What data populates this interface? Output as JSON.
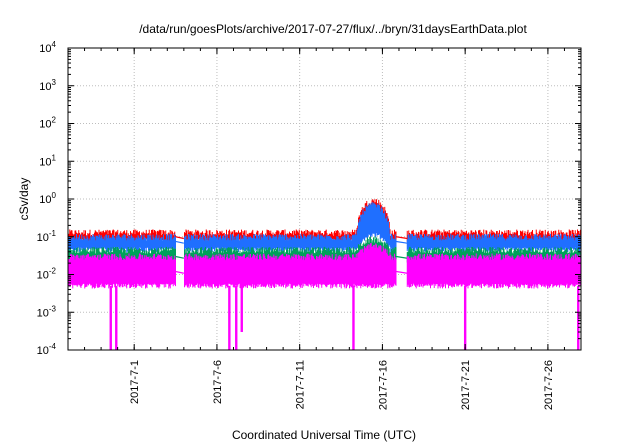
{
  "chart_data": {
    "type": "line",
    "title": "/data/run/goesPlots/archive/2017-07-27/flux/../bryn/31daysEarthData.plot",
    "xlabel": "Coordinated Universal Time (UTC)",
    "ylabel": "cSv/day",
    "yscale": "log",
    "ylim": [
      0.0001,
      10000
    ],
    "xlim": [
      "2017-06-27T00:00",
      "2017-07-28T00:00"
    ],
    "grid": true,
    "legend": "none",
    "y_ticks": [
      {
        "base": "10",
        "exp": "-4",
        "value": 0.0001
      },
      {
        "base": "10",
        "exp": "-3",
        "value": 0.001
      },
      {
        "base": "10",
        "exp": "-2",
        "value": 0.01
      },
      {
        "base": "10",
        "exp": "-1",
        "value": 0.1
      },
      {
        "base": "10",
        "exp": "0",
        "value": 1
      },
      {
        "base": "10",
        "exp": "1",
        "value": 10
      },
      {
        "base": "10",
        "exp": "2",
        "value": 100
      },
      {
        "base": "10",
        "exp": "3",
        "value": 1000
      },
      {
        "base": "10",
        "exp": "4",
        "value": 10000
      }
    ],
    "x_ticks": [
      {
        "label": "2017-7-1",
        "date": "2017-07-01"
      },
      {
        "label": "2017-7-6",
        "date": "2017-07-06"
      },
      {
        "label": "2017-7-11",
        "date": "2017-07-11"
      },
      {
        "label": "2017-7-16",
        "date": "2017-07-16"
      },
      {
        "label": "2017-7-21",
        "date": "2017-07-21"
      },
      {
        "label": "2017-7-26",
        "date": "2017-07-26"
      }
    ],
    "series": [
      {
        "color": "#ff0000",
        "baseline": 0.1,
        "band": [
          0.075,
          0.13
        ]
      },
      {
        "color": "#1f6fff",
        "baseline": 0.075,
        "band": [
          0.045,
          0.1
        ]
      },
      {
        "color": "#00a05a",
        "baseline": 0.03,
        "band": [
          0.02,
          0.045
        ]
      },
      {
        "color": "#ff00ff",
        "baseline": 0.012,
        "band": [
          0.005,
          0.03
        ]
      }
    ],
    "events": [
      {
        "label": "enhancement",
        "start": "2017-07-14T10:00",
        "end": "2017-07-16T12:00",
        "peak": 0.7
      },
      {
        "label": "data gap",
        "start": "2017-07-03T12:00",
        "end": "2017-07-04T00:00"
      },
      {
        "label": "data gap",
        "start": "2017-07-16T20:00",
        "end": "2017-07-17T12:00"
      }
    ],
    "dropouts": [
      {
        "date": "2017-06-29T14:00",
        "min": 0.0001
      },
      {
        "date": "2017-06-29T22:00",
        "min": 0.0001
      },
      {
        "date": "2017-07-06T18:00",
        "min": 0.0001
      },
      {
        "date": "2017-07-07T04:00",
        "min": 0.0001
      },
      {
        "date": "2017-07-07T12:00",
        "min": 0.0003
      },
      {
        "date": "2017-07-14T06:00",
        "min": 0.0001
      },
      {
        "date": "2017-07-21T00:00",
        "min": 0.0001
      },
      {
        "date": "2017-07-27T20:00",
        "min": 0.0001
      }
    ]
  }
}
